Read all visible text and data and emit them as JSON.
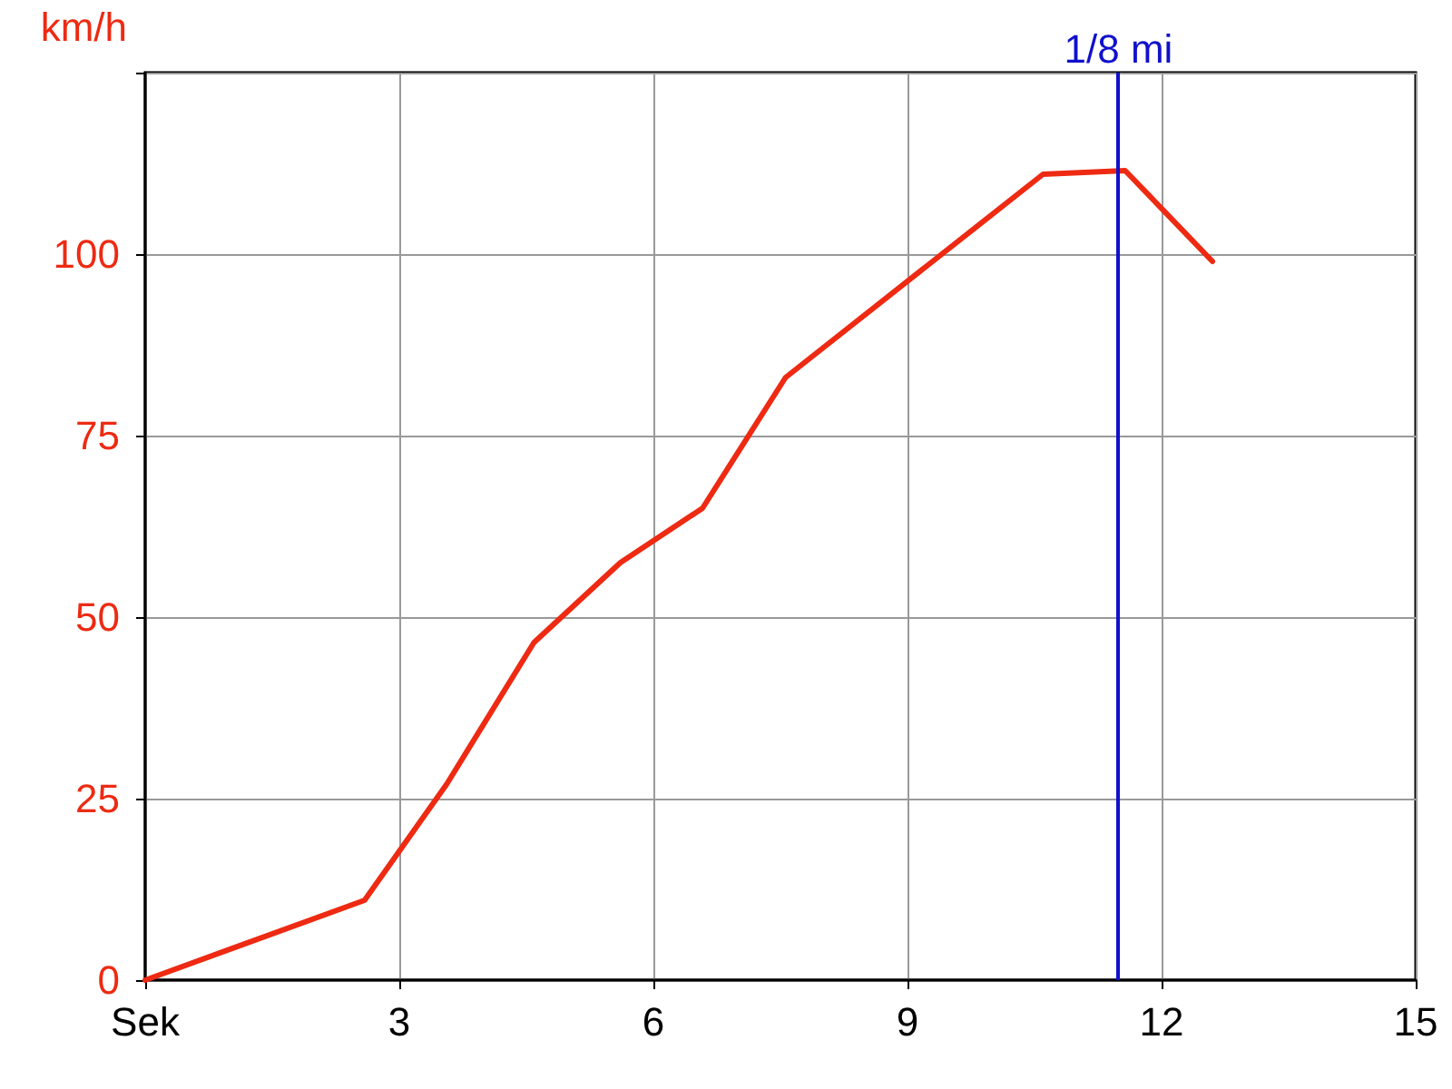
{
  "chart_data": {
    "type": "line",
    "ylabel": "km/h",
    "x": [
      0,
      2.59,
      3.56,
      4.59,
      5.61,
      6.58,
      7.56,
      10.6,
      11.57,
      12.6
    ],
    "series": [
      {
        "color": "#ee2a12",
        "values": [
          0,
          11,
          27,
          46.5,
          57.5,
          65,
          83,
          111,
          111.5,
          99
        ]
      }
    ],
    "xlim": [
      0,
      15
    ],
    "xticks": [
      {
        "value": 0,
        "label": "Sek"
      },
      3,
      6,
      9,
      12,
      15
    ],
    "ylim": [
      0,
      125
    ],
    "yticks": [
      0,
      25,
      50,
      75,
      100,
      {
        "value": 125,
        "label": null
      }
    ],
    "ref_lines": [
      {
        "axis": "x",
        "value": 11.49,
        "label": "1/8 mi",
        "color": "#1010cc"
      }
    ],
    "grid": true,
    "marker": "none",
    "line_style": "solid"
  }
}
